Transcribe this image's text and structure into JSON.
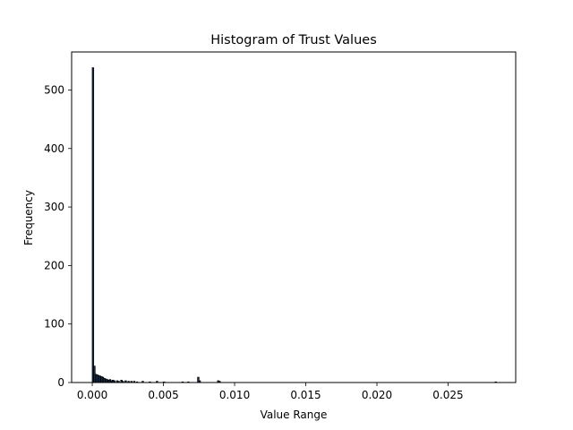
{
  "chart_data": {
    "type": "bar",
    "title": "Histogram of Trust Values",
    "xlabel": "Value Range",
    "ylabel": "Frequency",
    "xlim": [
      -0.00145,
      0.02975
    ],
    "ylim": [
      0,
      565
    ],
    "x_ticks": [
      {
        "value": 0.0,
        "label": "0.000"
      },
      {
        "value": 0.005,
        "label": "0.005"
      },
      {
        "value": 0.01,
        "label": "0.010"
      },
      {
        "value": 0.015,
        "label": "0.015"
      },
      {
        "value": 0.02,
        "label": "0.020"
      },
      {
        "value": 0.025,
        "label": "0.025"
      }
    ],
    "y_ticks": [
      {
        "value": 0,
        "label": "0"
      },
      {
        "value": 100,
        "label": "100"
      },
      {
        "value": 200,
        "label": "200"
      },
      {
        "value": 300,
        "label": "300"
      },
      {
        "value": 400,
        "label": "400"
      },
      {
        "value": 500,
        "label": "500"
      }
    ],
    "bin_width": 0.0001,
    "bins": [
      {
        "x": 0.0,
        "count": 538
      },
      {
        "x": 0.0001,
        "count": 28
      },
      {
        "x": 0.0002,
        "count": 14
      },
      {
        "x": 0.0003,
        "count": 13
      },
      {
        "x": 0.0004,
        "count": 12
      },
      {
        "x": 0.0005,
        "count": 11
      },
      {
        "x": 0.0006,
        "count": 10
      },
      {
        "x": 0.0007,
        "count": 9
      },
      {
        "x": 0.0008,
        "count": 7
      },
      {
        "x": 0.0009,
        "count": 6
      },
      {
        "x": 0.001,
        "count": 5
      },
      {
        "x": 0.0011,
        "count": 4
      },
      {
        "x": 0.0012,
        "count": 5
      },
      {
        "x": 0.0013,
        "count": 3
      },
      {
        "x": 0.0014,
        "count": 4
      },
      {
        "x": 0.0015,
        "count": 3
      },
      {
        "x": 0.0017,
        "count": 3
      },
      {
        "x": 0.0018,
        "count": 2
      },
      {
        "x": 0.002,
        "count": 4
      },
      {
        "x": 0.0021,
        "count": 2
      },
      {
        "x": 0.0023,
        "count": 3
      },
      {
        "x": 0.0025,
        "count": 2
      },
      {
        "x": 0.0027,
        "count": 2
      },
      {
        "x": 0.0029,
        "count": 2
      },
      {
        "x": 0.0031,
        "count": 1
      },
      {
        "x": 0.0035,
        "count": 2
      },
      {
        "x": 0.004,
        "count": 1
      },
      {
        "x": 0.0045,
        "count": 2
      },
      {
        "x": 0.005,
        "count": 1
      },
      {
        "x": 0.0063,
        "count": 1
      },
      {
        "x": 0.0067,
        "count": 1
      },
      {
        "x": 0.0074,
        "count": 9
      },
      {
        "x": 0.0075,
        "count": 3
      },
      {
        "x": 0.0088,
        "count": 3
      },
      {
        "x": 0.0089,
        "count": 2
      },
      {
        "x": 0.0283,
        "count": 1
      }
    ],
    "bar_color": "#1f3a5f",
    "edge_color": "#000000",
    "grid": false
  }
}
